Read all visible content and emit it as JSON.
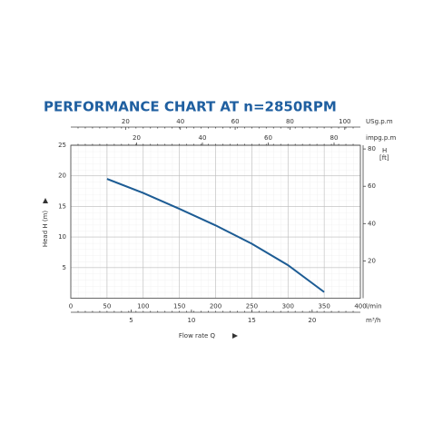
{
  "chart_data": {
    "type": "line",
    "title": "PERFORMANCE CHART AT n=2850RPM",
    "x_label": "Flow rate Q",
    "x_unit": "l/min",
    "y_label": "Head H (m)",
    "x": [
      50,
      100,
      150,
      200,
      250,
      300,
      350
    ],
    "series": [
      {
        "color": "#1d5c94",
        "values": [
          19.5,
          17.2,
          14.6,
          11.9,
          8.9,
          5.4,
          1.0
        ]
      }
    ],
    "xlim": [
      0,
      400
    ],
    "xticks": [
      0,
      50,
      100,
      150,
      200,
      250,
      300,
      350,
      400
    ],
    "ylim": [
      0,
      25
    ],
    "yticks": [
      5,
      10,
      15,
      20,
      25
    ],
    "grid": true,
    "y2": {
      "label": "H",
      "unit": "[ft]",
      "lim": [
        0,
        82
      ],
      "ticks": [
        20,
        40,
        60,
        80
      ]
    },
    "top_axis_1": {
      "label": "USg.p.m",
      "lim": [
        0,
        105.7
      ],
      "ticks": [
        20,
        40,
        60,
        80,
        100
      ]
    },
    "top_axis_2": {
      "label": "impg.p.m",
      "lim": [
        0,
        88
      ],
      "ticks": [
        20,
        40,
        60,
        80
      ]
    },
    "bottom_axis_2": {
      "label": "m³/h",
      "lim": [
        0,
        24
      ],
      "ticks": [
        5,
        10,
        15,
        20
      ]
    }
  }
}
